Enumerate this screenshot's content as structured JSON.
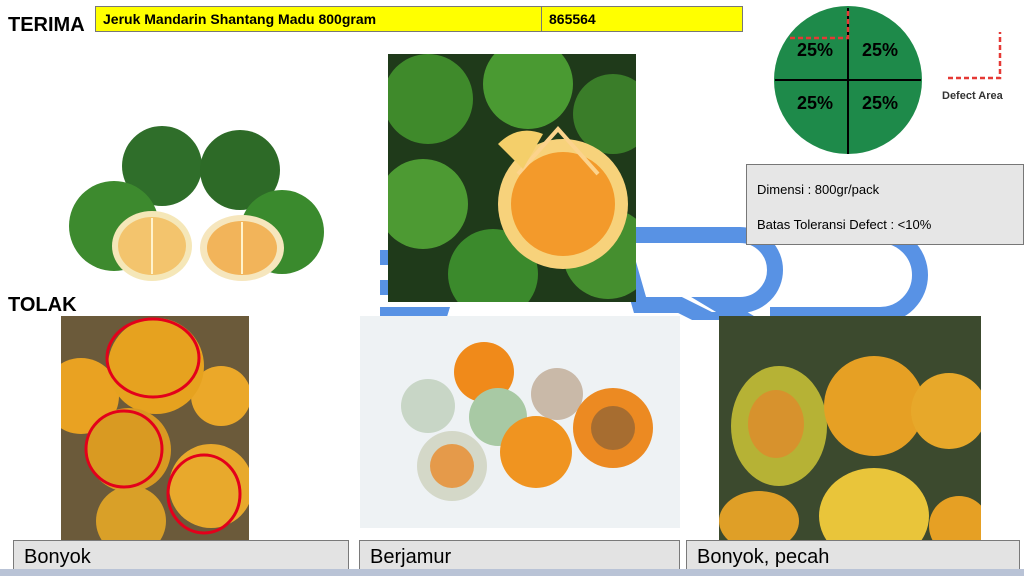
{
  "labels": {
    "terima": "TERIMA",
    "tolak": "TOLAK"
  },
  "product": {
    "name": "Jeruk Mandarin Shantang Madu 800gram",
    "code": "865564"
  },
  "defect_diagram": {
    "quadrants": [
      "25%",
      "25%",
      "25%",
      "25%"
    ],
    "legend": "Defect Area",
    "circle_color": "#1e8a4a",
    "marker_color": "#e53935"
  },
  "info": {
    "dimension": "Dimensi : 800gr/pack",
    "tolerance": "Batas Toleransi Defect : <10%"
  },
  "reject_captions": [
    "Bonyok",
    "Berjamur",
    "Bonyok, pecah"
  ],
  "colors": {
    "header_bg": "#ffff00",
    "watermark": "#3b7fe0"
  }
}
